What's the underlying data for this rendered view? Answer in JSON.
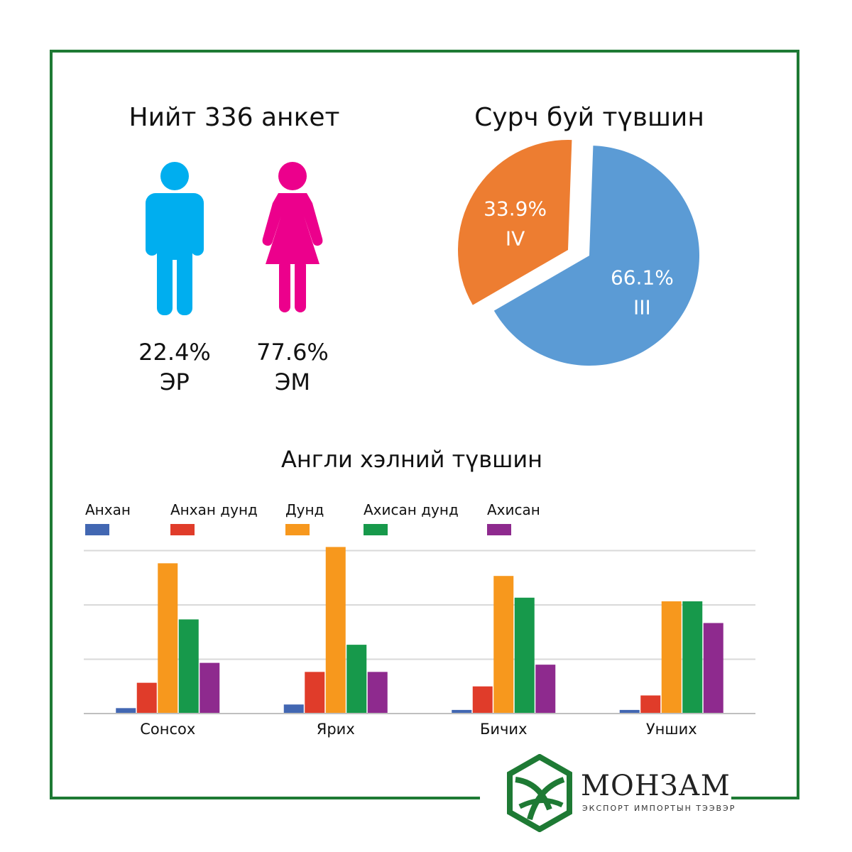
{
  "header": {
    "survey_title": "Нийт 336 анкет",
    "education_title": "Сурч буй түвшин",
    "english_title": "Англи хэлний түвшин"
  },
  "gender": {
    "male": {
      "percent": "22.4%",
      "label": "ЭР",
      "color": "#00aeef"
    },
    "female": {
      "percent": "77.6%",
      "label": "ЭМ",
      "color": "#ec008c"
    }
  },
  "chart_data": [
    {
      "type": "pie",
      "title": "Сурч буй түвшин",
      "slices": [
        {
          "label": "III",
          "value": 66.1,
          "display": "66.1%",
          "color": "#5b9bd5"
        },
        {
          "label": "IV",
          "value": 33.9,
          "display": "33.9%",
          "color": "#ed7d31"
        }
      ]
    },
    {
      "type": "bar",
      "title": "Англи хэлний түвшин",
      "categories": [
        "Сонсох",
        "Ярих",
        "Бичих",
        "Унших"
      ],
      "series": [
        {
          "name": "Анхан",
          "color": "#4267b2",
          "values": [
            3,
            5,
            2,
            2
          ]
        },
        {
          "name": "Анхан дунд",
          "color": "#e03c2a",
          "values": [
            17,
            23,
            15,
            10
          ]
        },
        {
          "name": "Дунд",
          "color": "#f7981d",
          "values": [
            83,
            92,
            76,
            62
          ]
        },
        {
          "name": "Ахисан дунд",
          "color": "#17994b",
          "values": [
            52,
            38,
            64,
            62
          ]
        },
        {
          "name": "Ахисан",
          "color": "#8e2a8e",
          "values": [
            28,
            23,
            27,
            50
          ]
        }
      ],
      "ylim": [
        0,
        100
      ],
      "grid": true,
      "legend": "top"
    }
  ],
  "brand": {
    "name": "МОНЗАМ",
    "subtitle": "ЭКСПОРТ ИМПОРТЫН ТЭЭВЭР",
    "color": "#1e7a34"
  }
}
